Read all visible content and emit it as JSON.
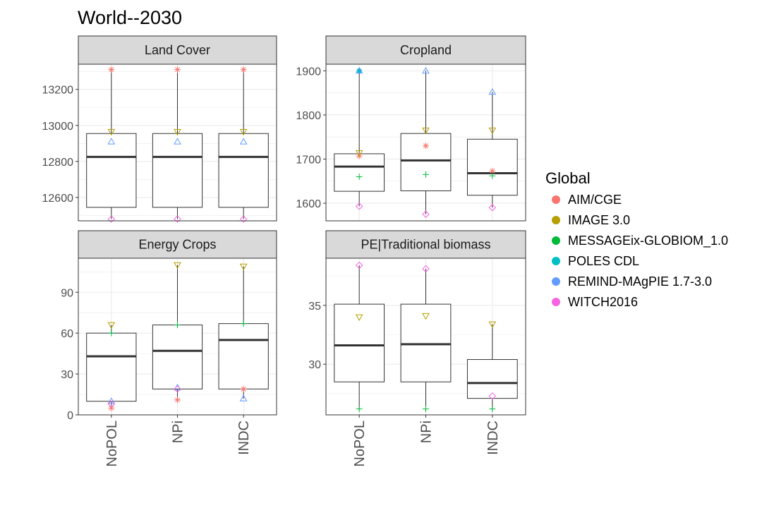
{
  "chart_data": {
    "type": "boxplot",
    "title": "World--2030",
    "categories": [
      "NoPOL",
      "NPi",
      "INDC"
    ],
    "legend": {
      "title": "Global",
      "placement": "right",
      "entries": [
        {
          "name": "AIM/CGE",
          "color": "#F8766D",
          "shape": "asterisk"
        },
        {
          "name": "IMAGE 3.0",
          "color": "#B79F00",
          "shape": "triangle-down"
        },
        {
          "name": "MESSAGEix-GLOBIOM_1.0",
          "color": "#00BA38",
          "shape": "plus"
        },
        {
          "name": "POLES CDL",
          "color": "#00BFC4",
          "shape": "point"
        },
        {
          "name": "REMIND-MAgPIE 1.7-3.0",
          "color": "#619CFF",
          "shape": "triangle-up"
        },
        {
          "name": "WITCH2016",
          "color": "#F564E3",
          "shape": "diamond"
        }
      ]
    },
    "panels": [
      {
        "name": "Land Cover",
        "ylim": [
          12470,
          13340
        ],
        "yticks": [
          12600,
          12800,
          13000,
          13200
        ],
        "boxes": [
          {
            "category": "NoPOL",
            "min": 12480,
            "q1": 12545,
            "median": 12825,
            "q3": 12955,
            "max": 13310
          },
          {
            "category": "NPi",
            "min": 12480,
            "q1": 12545,
            "median": 12825,
            "q3": 12955,
            "max": 13310
          },
          {
            "category": "INDC",
            "min": 12480,
            "q1": 12545,
            "median": 12825,
            "q3": 12955,
            "max": 13310
          }
        ],
        "points": [
          {
            "category": "NoPOL",
            "model": "AIM/CGE",
            "value": 13310
          },
          {
            "category": "NoPOL",
            "model": "IMAGE 3.0",
            "value": 12965
          },
          {
            "category": "NoPOL",
            "model": "REMIND-MAgPIE 1.7-3.0",
            "value": 12910
          },
          {
            "category": "NoPOL",
            "model": "WITCH2016",
            "value": 12480
          },
          {
            "category": "NPi",
            "model": "AIM/CGE",
            "value": 13310
          },
          {
            "category": "NPi",
            "model": "IMAGE 3.0",
            "value": 12965
          },
          {
            "category": "NPi",
            "model": "REMIND-MAgPIE 1.7-3.0",
            "value": 12910
          },
          {
            "category": "NPi",
            "model": "WITCH2016",
            "value": 12480
          },
          {
            "category": "INDC",
            "model": "AIM/CGE",
            "value": 13310
          },
          {
            "category": "INDC",
            "model": "IMAGE 3.0",
            "value": 12965
          },
          {
            "category": "INDC",
            "model": "REMIND-MAgPIE 1.7-3.0",
            "value": 12910
          },
          {
            "category": "INDC",
            "model": "WITCH2016",
            "value": 12480
          }
        ]
      },
      {
        "name": "Cropland",
        "ylim": [
          1560,
          1915
        ],
        "yticks": [
          1600,
          1700,
          1800,
          1900
        ],
        "boxes": [
          {
            "category": "NoPOL",
            "min": 1593,
            "q1": 1627,
            "median": 1683,
            "q3": 1712,
            "max": 1900
          },
          {
            "category": "NPi",
            "min": 1575,
            "q1": 1628,
            "median": 1697,
            "q3": 1758,
            "max": 1900
          },
          {
            "category": "INDC",
            "min": 1590,
            "q1": 1618,
            "median": 1668,
            "q3": 1745,
            "max": 1852
          }
        ],
        "points": [
          {
            "category": "NoPOL",
            "model": "AIM/CGE",
            "value": 1707
          },
          {
            "category": "NoPOL",
            "model": "IMAGE 3.0",
            "value": 1714
          },
          {
            "category": "NoPOL",
            "model": "MESSAGEix-GLOBIOM_1.0",
            "value": 1660
          },
          {
            "category": "NoPOL",
            "model": "POLES CDL",
            "value": 1900
          },
          {
            "category": "NoPOL",
            "model": "REMIND-MAgPIE 1.7-3.0",
            "value": 1900
          },
          {
            "category": "NoPOL",
            "model": "WITCH2016",
            "value": 1593
          },
          {
            "category": "NPi",
            "model": "AIM/CGE",
            "value": 1730
          },
          {
            "category": "NPi",
            "model": "IMAGE 3.0",
            "value": 1765
          },
          {
            "category": "NPi",
            "model": "MESSAGEix-GLOBIOM_1.0",
            "value": 1665
          },
          {
            "category": "NPi",
            "model": "REMIND-MAgPIE 1.7-3.0",
            "value": 1900
          },
          {
            "category": "NPi",
            "model": "WITCH2016",
            "value": 1575
          },
          {
            "category": "INDC",
            "model": "AIM/CGE",
            "value": 1673
          },
          {
            "category": "INDC",
            "model": "IMAGE 3.0",
            "value": 1765
          },
          {
            "category": "INDC",
            "model": "MESSAGEix-GLOBIOM_1.0",
            "value": 1662
          },
          {
            "category": "INDC",
            "model": "REMIND-MAgPIE 1.7-3.0",
            "value": 1852
          },
          {
            "category": "INDC",
            "model": "WITCH2016",
            "value": 1590
          }
        ]
      },
      {
        "name": "Energy Crops",
        "ylim": [
          0,
          115
        ],
        "yticks": [
          0,
          30,
          60,
          90
        ],
        "boxes": [
          {
            "category": "NoPOL",
            "min": 5,
            "q1": 10,
            "median": 43,
            "q3": 60,
            "max": 66
          },
          {
            "category": "NPi",
            "min": 11,
            "q1": 19,
            "median": 47,
            "q3": 66,
            "max": 110
          },
          {
            "category": "INDC",
            "min": 12,
            "q1": 19,
            "median": 55,
            "q3": 67,
            "max": 109
          }
        ],
        "points": [
          {
            "category": "NoPOL",
            "model": "AIM/CGE",
            "value": 5
          },
          {
            "category": "NoPOL",
            "model": "IMAGE 3.0",
            "value": 66
          },
          {
            "category": "NoPOL",
            "model": "MESSAGEix-GLOBIOM_1.0",
            "value": 60
          },
          {
            "category": "NoPOL",
            "model": "REMIND-MAgPIE 1.7-3.0",
            "value": 10
          },
          {
            "category": "NoPOL",
            "model": "WITCH2016",
            "value": 8
          },
          {
            "category": "NPi",
            "model": "AIM/CGE",
            "value": 11
          },
          {
            "category": "NPi",
            "model": "IMAGE 3.0",
            "value": 110
          },
          {
            "category": "NPi",
            "model": "MESSAGEix-GLOBIOM_1.0",
            "value": 66
          },
          {
            "category": "NPi",
            "model": "REMIND-MAgPIE 1.7-3.0",
            "value": 20
          },
          {
            "category": "NPi",
            "model": "WITCH2016",
            "value": 19
          },
          {
            "category": "INDC",
            "model": "AIM/CGE",
            "value": 19
          },
          {
            "category": "INDC",
            "model": "IMAGE 3.0",
            "value": 109
          },
          {
            "category": "INDC",
            "model": "MESSAGEix-GLOBIOM_1.0",
            "value": 67
          },
          {
            "category": "INDC",
            "model": "REMIND-MAgPIE 1.7-3.0",
            "value": 12
          }
        ]
      },
      {
        "name": "PE|Traditional biomass",
        "ylim": [
          25.7,
          39.0
        ],
        "yticks": [
          30,
          35
        ],
        "boxes": [
          {
            "category": "NoPOL",
            "min": 26.2,
            "q1": 28.5,
            "median": 31.6,
            "q3": 35.1,
            "max": 38.4
          },
          {
            "category": "NPi",
            "min": 26.2,
            "q1": 28.5,
            "median": 31.7,
            "q3": 35.1,
            "max": 38.1
          },
          {
            "category": "INDC",
            "min": 26.2,
            "q1": 27.1,
            "median": 28.4,
            "q3": 30.4,
            "max": 33.4
          }
        ],
        "points": [
          {
            "category": "NoPOL",
            "model": "IMAGE 3.0",
            "value": 34.0
          },
          {
            "category": "NoPOL",
            "model": "MESSAGEix-GLOBIOM_1.0",
            "value": 26.2
          },
          {
            "category": "NoPOL",
            "model": "WITCH2016",
            "value": 38.4
          },
          {
            "category": "NPi",
            "model": "IMAGE 3.0",
            "value": 34.1
          },
          {
            "category": "NPi",
            "model": "MESSAGEix-GLOBIOM_1.0",
            "value": 26.2
          },
          {
            "category": "NPi",
            "model": "WITCH2016",
            "value": 38.1
          },
          {
            "category": "INDC",
            "model": "IMAGE 3.0",
            "value": 33.4
          },
          {
            "category": "INDC",
            "model": "MESSAGEix-GLOBIOM_1.0",
            "value": 26.2
          },
          {
            "category": "INDC",
            "model": "WITCH2016",
            "value": 27.3
          }
        ]
      }
    ]
  }
}
